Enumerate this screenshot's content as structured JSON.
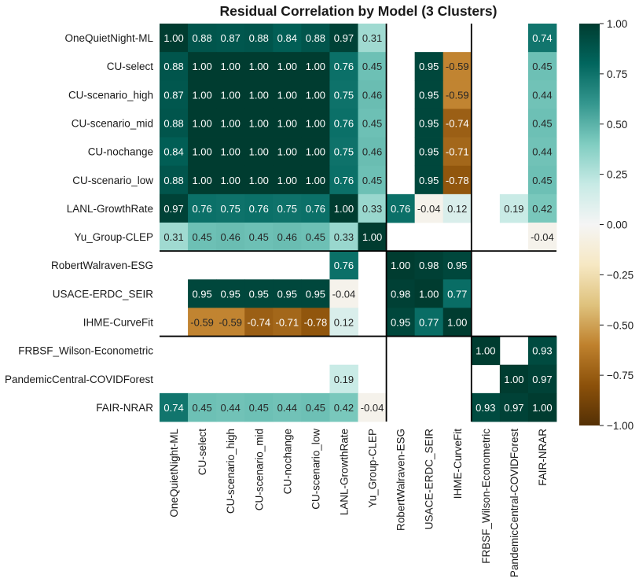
{
  "chart_data": {
    "type": "heatmap",
    "title": "Residual Correlation by Model (3 Clusters)",
    "models": [
      "OneQuietNight-ML",
      "CU-select",
      "CU-scenario_high",
      "CU-scenario_mid",
      "CU-nochange",
      "CU-scenario_low",
      "LANL-GrowthRate",
      "Yu_Group-CLEP",
      "RobertWalraven-ESG",
      "USACE-ERDC_SEIR",
      "IHME-CurveFit",
      "FRBSF_Wilson-Econometric",
      "PandemicCentral-COVIDForest",
      "FAIR-NRAR"
    ],
    "values": [
      [
        1.0,
        0.88,
        0.87,
        0.88,
        0.84,
        0.88,
        0.97,
        0.31,
        null,
        null,
        null,
        null,
        null,
        0.74
      ],
      [
        0.88,
        1.0,
        1.0,
        1.0,
        1.0,
        1.0,
        0.76,
        0.45,
        null,
        0.95,
        -0.59,
        null,
        null,
        0.45
      ],
      [
        0.87,
        1.0,
        1.0,
        1.0,
        1.0,
        1.0,
        0.75,
        0.46,
        null,
        0.95,
        -0.59,
        null,
        null,
        0.44
      ],
      [
        0.88,
        1.0,
        1.0,
        1.0,
        1.0,
        1.0,
        0.76,
        0.45,
        null,
        0.95,
        -0.74,
        null,
        null,
        0.45
      ],
      [
        0.84,
        1.0,
        1.0,
        1.0,
        1.0,
        1.0,
        0.75,
        0.46,
        null,
        0.95,
        -0.71,
        null,
        null,
        0.44
      ],
      [
        0.88,
        1.0,
        1.0,
        1.0,
        1.0,
        1.0,
        0.76,
        0.45,
        null,
        0.95,
        -0.78,
        null,
        null,
        0.45
      ],
      [
        0.97,
        0.76,
        0.75,
        0.76,
        0.75,
        0.76,
        1.0,
        0.33,
        0.76,
        -0.04,
        0.12,
        null,
        0.19,
        0.42
      ],
      [
        0.31,
        0.45,
        0.46,
        0.45,
        0.46,
        0.45,
        0.33,
        1.0,
        null,
        null,
        null,
        null,
        null,
        -0.04
      ],
      [
        null,
        null,
        null,
        null,
        null,
        null,
        0.76,
        null,
        1.0,
        0.98,
        0.95,
        null,
        null,
        null
      ],
      [
        null,
        0.95,
        0.95,
        0.95,
        0.95,
        0.95,
        -0.04,
        null,
        0.98,
        1.0,
        0.77,
        null,
        null,
        null
      ],
      [
        null,
        -0.59,
        -0.59,
        -0.74,
        -0.71,
        -0.78,
        0.12,
        null,
        0.95,
        0.77,
        1.0,
        null,
        null,
        null
      ],
      [
        null,
        null,
        null,
        null,
        null,
        null,
        null,
        null,
        null,
        null,
        null,
        1.0,
        null,
        0.93
      ],
      [
        null,
        null,
        null,
        null,
        null,
        null,
        0.19,
        null,
        null,
        null,
        null,
        null,
        1.0,
        0.97
      ],
      [
        0.74,
        0.45,
        0.44,
        0.45,
        0.44,
        0.45,
        0.42,
        -0.04,
        null,
        null,
        null,
        0.93,
        0.97,
        1.0
      ]
    ],
    "cluster_boundaries": [
      8,
      11
    ],
    "vmin": -1.0,
    "vmax": 1.0,
    "colormap": "BrBG",
    "colormap_stops": [
      "#543005",
      "#8c510a",
      "#bf812d",
      "#dfc27d",
      "#f6e8c3",
      "#f5f5f5",
      "#c7eae5",
      "#80cdc1",
      "#35978f",
      "#01665e",
      "#003c30"
    ],
    "colorbar_ticks": [
      "1.00",
      "0.75",
      "0.50",
      "0.25",
      "0.00",
      "−0.25",
      "−0.50",
      "−0.75",
      "−1.00"
    ]
  }
}
